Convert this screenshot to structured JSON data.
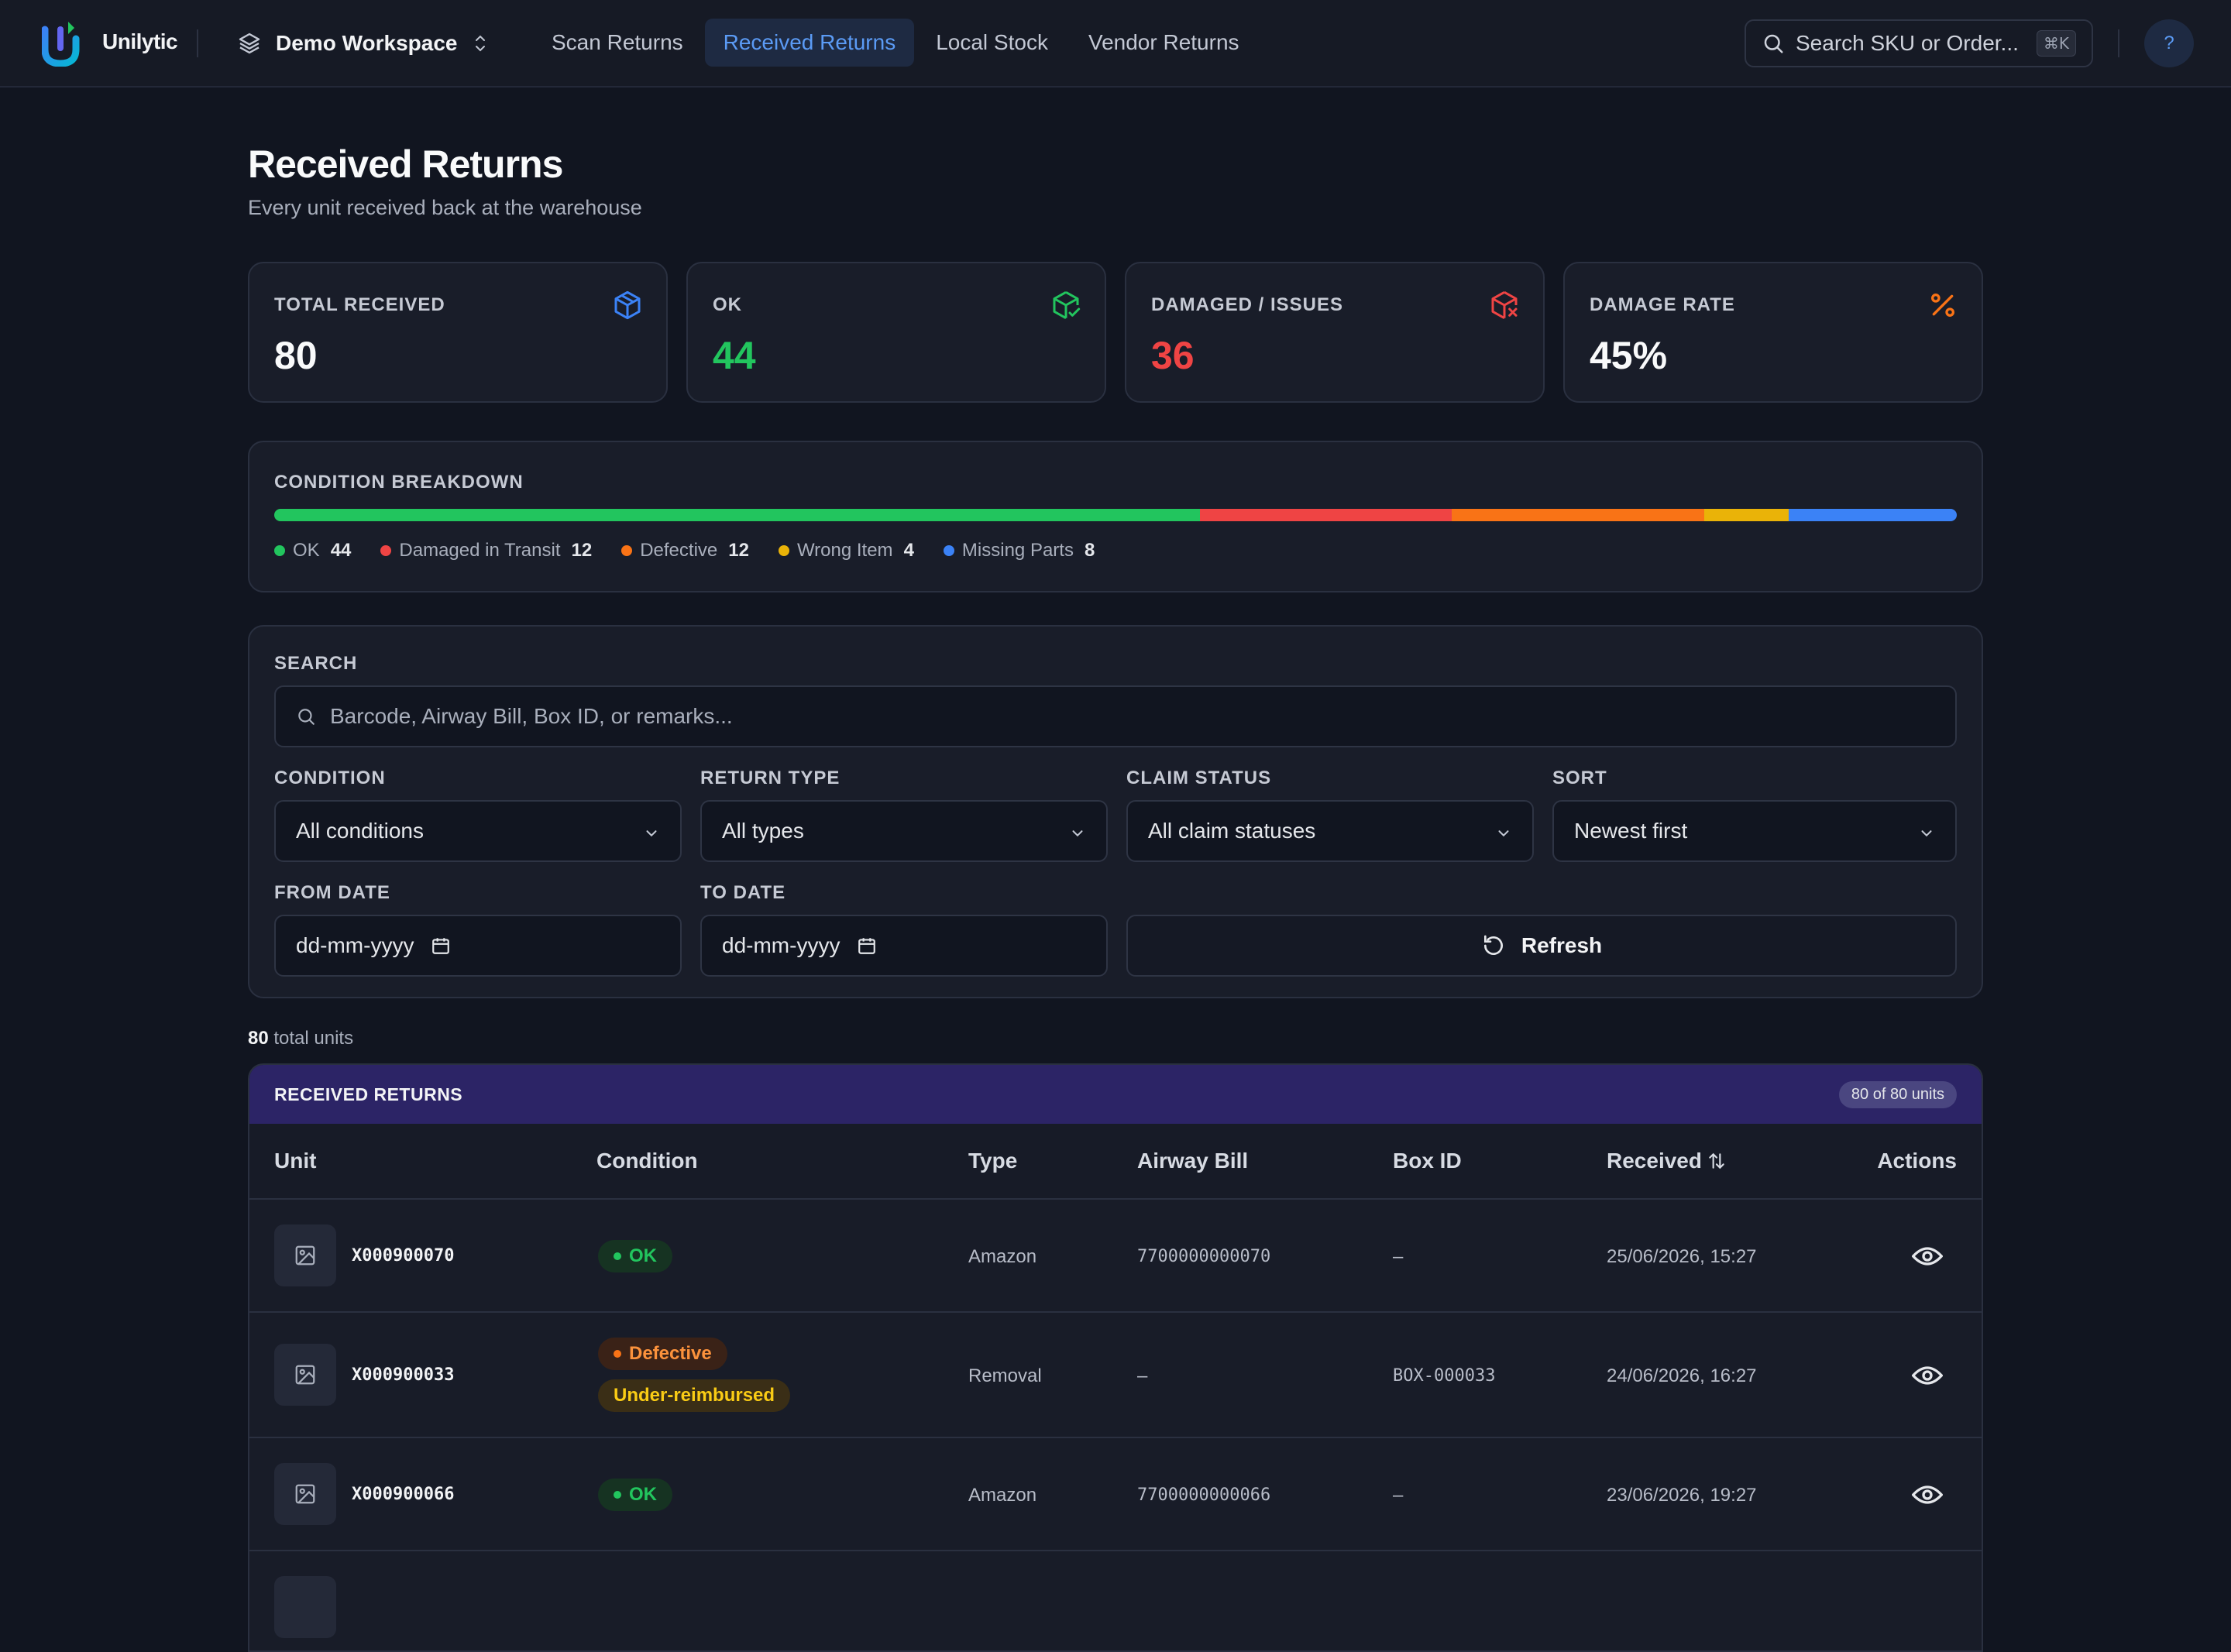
{
  "app": {
    "name": "Unilytic",
    "workspace": "Demo Workspace"
  },
  "nav": [
    {
      "label": "Scan Returns",
      "active": false
    },
    {
      "label": "Received Returns",
      "active": true
    },
    {
      "label": "Local Stock",
      "active": false
    },
    {
      "label": "Vendor Returns",
      "active": false
    }
  ],
  "search": {
    "placeholder": "Search SKU or Order...",
    "shortcut": "⌘K"
  },
  "help": {
    "label": "?"
  },
  "page": {
    "title": "Received Returns",
    "subtitle": "Every unit received back at the warehouse"
  },
  "stats": [
    {
      "label": "TOTAL RECEIVED",
      "value": "80",
      "color": "#f9fafb",
      "icon": "package-icon",
      "icon_color": "#3b82f6"
    },
    {
      "label": "OK",
      "value": "44",
      "color": "#22c55e",
      "icon": "package-check-icon",
      "icon_color": "#22c55e"
    },
    {
      "label": "DAMAGED / ISSUES",
      "value": "36",
      "color": "#ef4444",
      "icon": "package-x-icon",
      "icon_color": "#ef4444"
    },
    {
      "label": "DAMAGE RATE",
      "value": "45%",
      "color": "#f9fafb",
      "icon": "percent-icon",
      "icon_color": "#f97316"
    }
  ],
  "breakdown": {
    "label": "CONDITION BREAKDOWN",
    "items": [
      {
        "name": "OK",
        "count": 44,
        "color": "#22c55e"
      },
      {
        "name": "Damaged in Transit",
        "count": 12,
        "color": "#ef4444"
      },
      {
        "name": "Defective",
        "count": 12,
        "color": "#f97316"
      },
      {
        "name": "Wrong Item",
        "count": 4,
        "color": "#eab308"
      },
      {
        "name": "Missing Parts",
        "count": 8,
        "color": "#3b82f6"
      }
    ]
  },
  "filters": {
    "search_label": "SEARCH",
    "search_placeholder": "Barcode, Airway Bill, Box ID, or remarks...",
    "condition_label": "CONDITION",
    "condition_value": "All conditions",
    "type_label": "RETURN TYPE",
    "type_value": "All types",
    "claim_label": "CLAIM STATUS",
    "claim_value": "All claim statuses",
    "sort_label": "SORT",
    "sort_value": "Newest first",
    "from_label": "FROM DATE",
    "from_placeholder": "dd-mm-yyyy",
    "to_label": "TO DATE",
    "to_placeholder": "dd-mm-yyyy",
    "refresh_label": "Refresh"
  },
  "summary": {
    "count": "80",
    "text": "total units"
  },
  "table": {
    "title": "RECEIVED RETURNS",
    "badge": "80 of 80 units",
    "columns": {
      "unit": "Unit",
      "condition": "Condition",
      "type": "Type",
      "awb": "Airway Bill",
      "box": "Box ID",
      "received": "Received",
      "actions": "Actions"
    },
    "rows": [
      {
        "sku": "X000900070",
        "condition": "OK",
        "condition_color": "#22c55e",
        "claim": "",
        "type": "Amazon",
        "awb": "7700000000070",
        "box": "–",
        "received": "25/06/2026, 15:27"
      },
      {
        "sku": "X000900033",
        "condition": "Defective",
        "condition_color": "#f97316",
        "claim": "Under-reimbursed",
        "type": "Removal",
        "awb": "–",
        "box": "BOX-000033",
        "received": "24/06/2026, 16:27"
      },
      {
        "sku": "X000900066",
        "condition": "OK",
        "condition_color": "#22c55e",
        "claim": "",
        "type": "Amazon",
        "awb": "7700000000066",
        "box": "–",
        "received": "23/06/2026, 19:27"
      }
    ]
  }
}
